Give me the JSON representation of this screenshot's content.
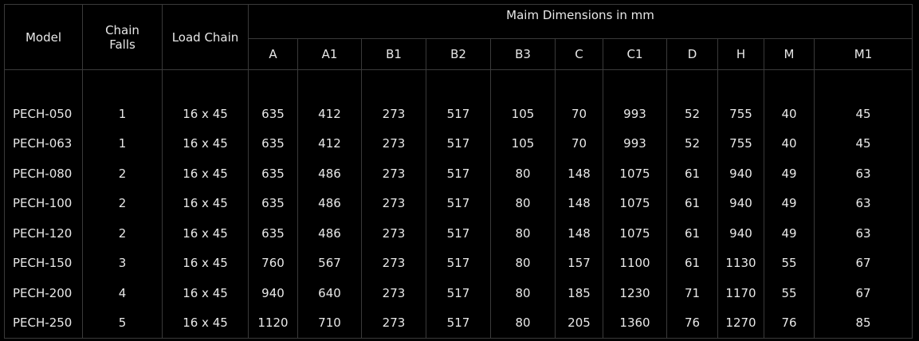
{
  "table": {
    "headers": {
      "model": "Model",
      "chain_falls": "Chain Falls",
      "load_chain": "Load Chain",
      "dimensions_group": "Maim Dimensions in mm",
      "dimension_cols": [
        "A",
        "A1",
        "B1",
        "B2",
        "B3",
        "C",
        "C1",
        "D",
        "H",
        "M",
        "M1"
      ]
    },
    "rows": [
      [
        "PECH-050",
        "1",
        "16 x 45",
        "635",
        "412",
        "273",
        "517",
        "105",
        "70",
        "993",
        "52",
        "755",
        "40",
        "45"
      ],
      [
        "PECH-063",
        "1",
        "16 x 45",
        "635",
        "412",
        "273",
        "517",
        "105",
        "70",
        "993",
        "52",
        "755",
        "40",
        "45"
      ],
      [
        "PECH-080",
        "2",
        "16 x 45",
        "635",
        "486",
        "273",
        "517",
        "80",
        "148",
        "1075",
        "61",
        "940",
        "49",
        "63"
      ],
      [
        "PECH-100",
        "2",
        "16 x 45",
        "635",
        "486",
        "273",
        "517",
        "80",
        "148",
        "1075",
        "61",
        "940",
        "49",
        "63"
      ],
      [
        "PECH-120",
        "2",
        "16 x 45",
        "635",
        "486",
        "273",
        "517",
        "80",
        "148",
        "1075",
        "61",
        "940",
        "49",
        "63"
      ],
      [
        "PECH-150",
        "3",
        "16 x 45",
        "760",
        "567",
        "273",
        "517",
        "80",
        "157",
        "1100",
        "61",
        "1130",
        "55",
        "67"
      ],
      [
        "PECH-200",
        "4",
        "16 x 45",
        "940",
        "640",
        "273",
        "517",
        "80",
        "185",
        "1230",
        "71",
        "1170",
        "55",
        "67"
      ],
      [
        "PECH-250",
        "5",
        "16 x 45",
        "1120",
        "710",
        "273",
        "517",
        "80",
        "205",
        "1360",
        "76",
        "1270",
        "76",
        "85"
      ]
    ]
  },
  "colors": {
    "background": "#000000",
    "text": "#e8e8e8",
    "grid": "#3a3a3a"
  }
}
